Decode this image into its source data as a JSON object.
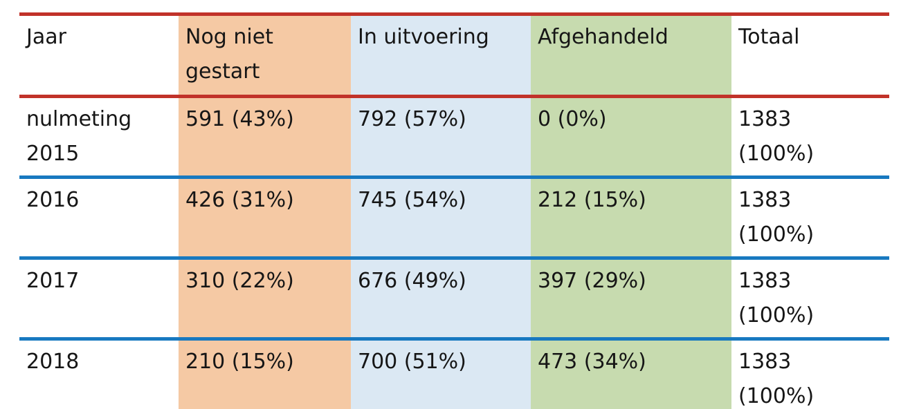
{
  "colors": {
    "background": "#FFFFFF",
    "text": "#161616",
    "header_rule_red": "#C13229",
    "row_rule_blue": "#1879C0",
    "col_nog_niet_gestart_bg": "#F5C9A4",
    "col_in_uitvoering_bg": "#DBE8F3",
    "col_afgehandeld_bg": "#C7DBAF"
  },
  "table": {
    "header": [
      "Jaar",
      "Nog niet\ngestart",
      "In uitvoering",
      "Afgehandeld",
      "Totaal"
    ],
    "rows": [
      [
        "nulmeting\n2015",
        "591 (43%)",
        "792 (57%)",
        "0 (0%)",
        "1383\n(100%)"
      ],
      [
        "2016",
        "426 (31%)",
        "745 (54%)",
        "212 (15%)",
        "1383\n(100%)"
      ],
      [
        "2017",
        "310 (22%)",
        "676 (49%)",
        "397 (29%)",
        "1383\n(100%)"
      ],
      [
        "2018",
        "210 (15%)",
        "700 (51%)",
        "473 (34%)",
        "1383\n(100%)"
      ]
    ]
  },
  "chart_data": {
    "type": "table",
    "columns": [
      "Jaar",
      "Nog niet gestart",
      "In uitvoering",
      "Afgehandeld",
      "Totaal"
    ],
    "rows": [
      [
        "nulmeting 2015",
        "591 (43%)",
        "792 (57%)",
        "0 (0%)",
        "1383 (100%)"
      ],
      [
        "2016",
        "426 (31%)",
        "745 (54%)",
        "212 (15%)",
        "1383 (100%)"
      ],
      [
        "2017",
        "310 (22%)",
        "676 (49%)",
        "397 (29%)",
        "1383 (100%)"
      ],
      [
        "2018",
        "210 (15%)",
        "700 (51%)",
        "473 (34%)",
        "1383 (100%)"
      ]
    ],
    "categories": [
      "nulmeting 2015",
      "2016",
      "2017",
      "2018"
    ],
    "series": [
      {
        "name": "Nog niet gestart",
        "values": [
          591,
          426,
          310,
          210
        ],
        "percent": [
          43,
          31,
          22,
          15
        ]
      },
      {
        "name": "In uitvoering",
        "values": [
          792,
          745,
          676,
          700
        ],
        "percent": [
          57,
          54,
          49,
          51
        ]
      },
      {
        "name": "Afgehandeld",
        "values": [
          0,
          212,
          397,
          473
        ],
        "percent": [
          0,
          15,
          29,
          34
        ]
      },
      {
        "name": "Totaal",
        "values": [
          1383,
          1383,
          1383,
          1383
        ],
        "percent": [
          100,
          100,
          100,
          100
        ]
      }
    ]
  }
}
